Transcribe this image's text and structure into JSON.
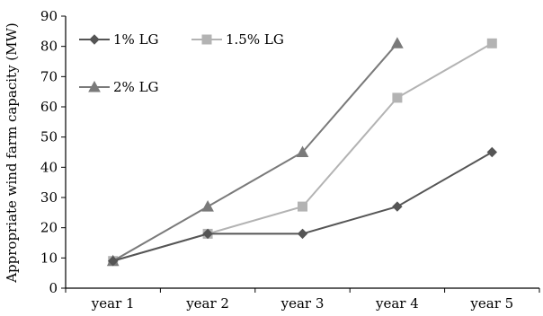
{
  "chart_data": {
    "type": "line",
    "categories": [
      "year 1",
      "year 2",
      "year 3",
      "year 4",
      "year 5"
    ],
    "ylabel": "Appropriate wind farm capacity (MW)",
    "xlabel": "",
    "ylim": [
      0,
      90
    ],
    "yticks": [
      0,
      10,
      20,
      30,
      40,
      50,
      60,
      70,
      80,
      90
    ],
    "grid": false,
    "legend_placement": "top-left",
    "series": [
      {
        "name": "1% LG",
        "marker": "diamond",
        "color": "#555555",
        "values": [
          9,
          18,
          18,
          27,
          45
        ]
      },
      {
        "name": "1.5% LG",
        "marker": "square",
        "color": "#b3b3b3",
        "values": [
          9,
          18,
          27,
          63,
          81
        ]
      },
      {
        "name": "2% LG",
        "marker": "triangle",
        "color": "#7a7a7a",
        "values": [
          9,
          27,
          45,
          81,
          null
        ]
      }
    ]
  }
}
